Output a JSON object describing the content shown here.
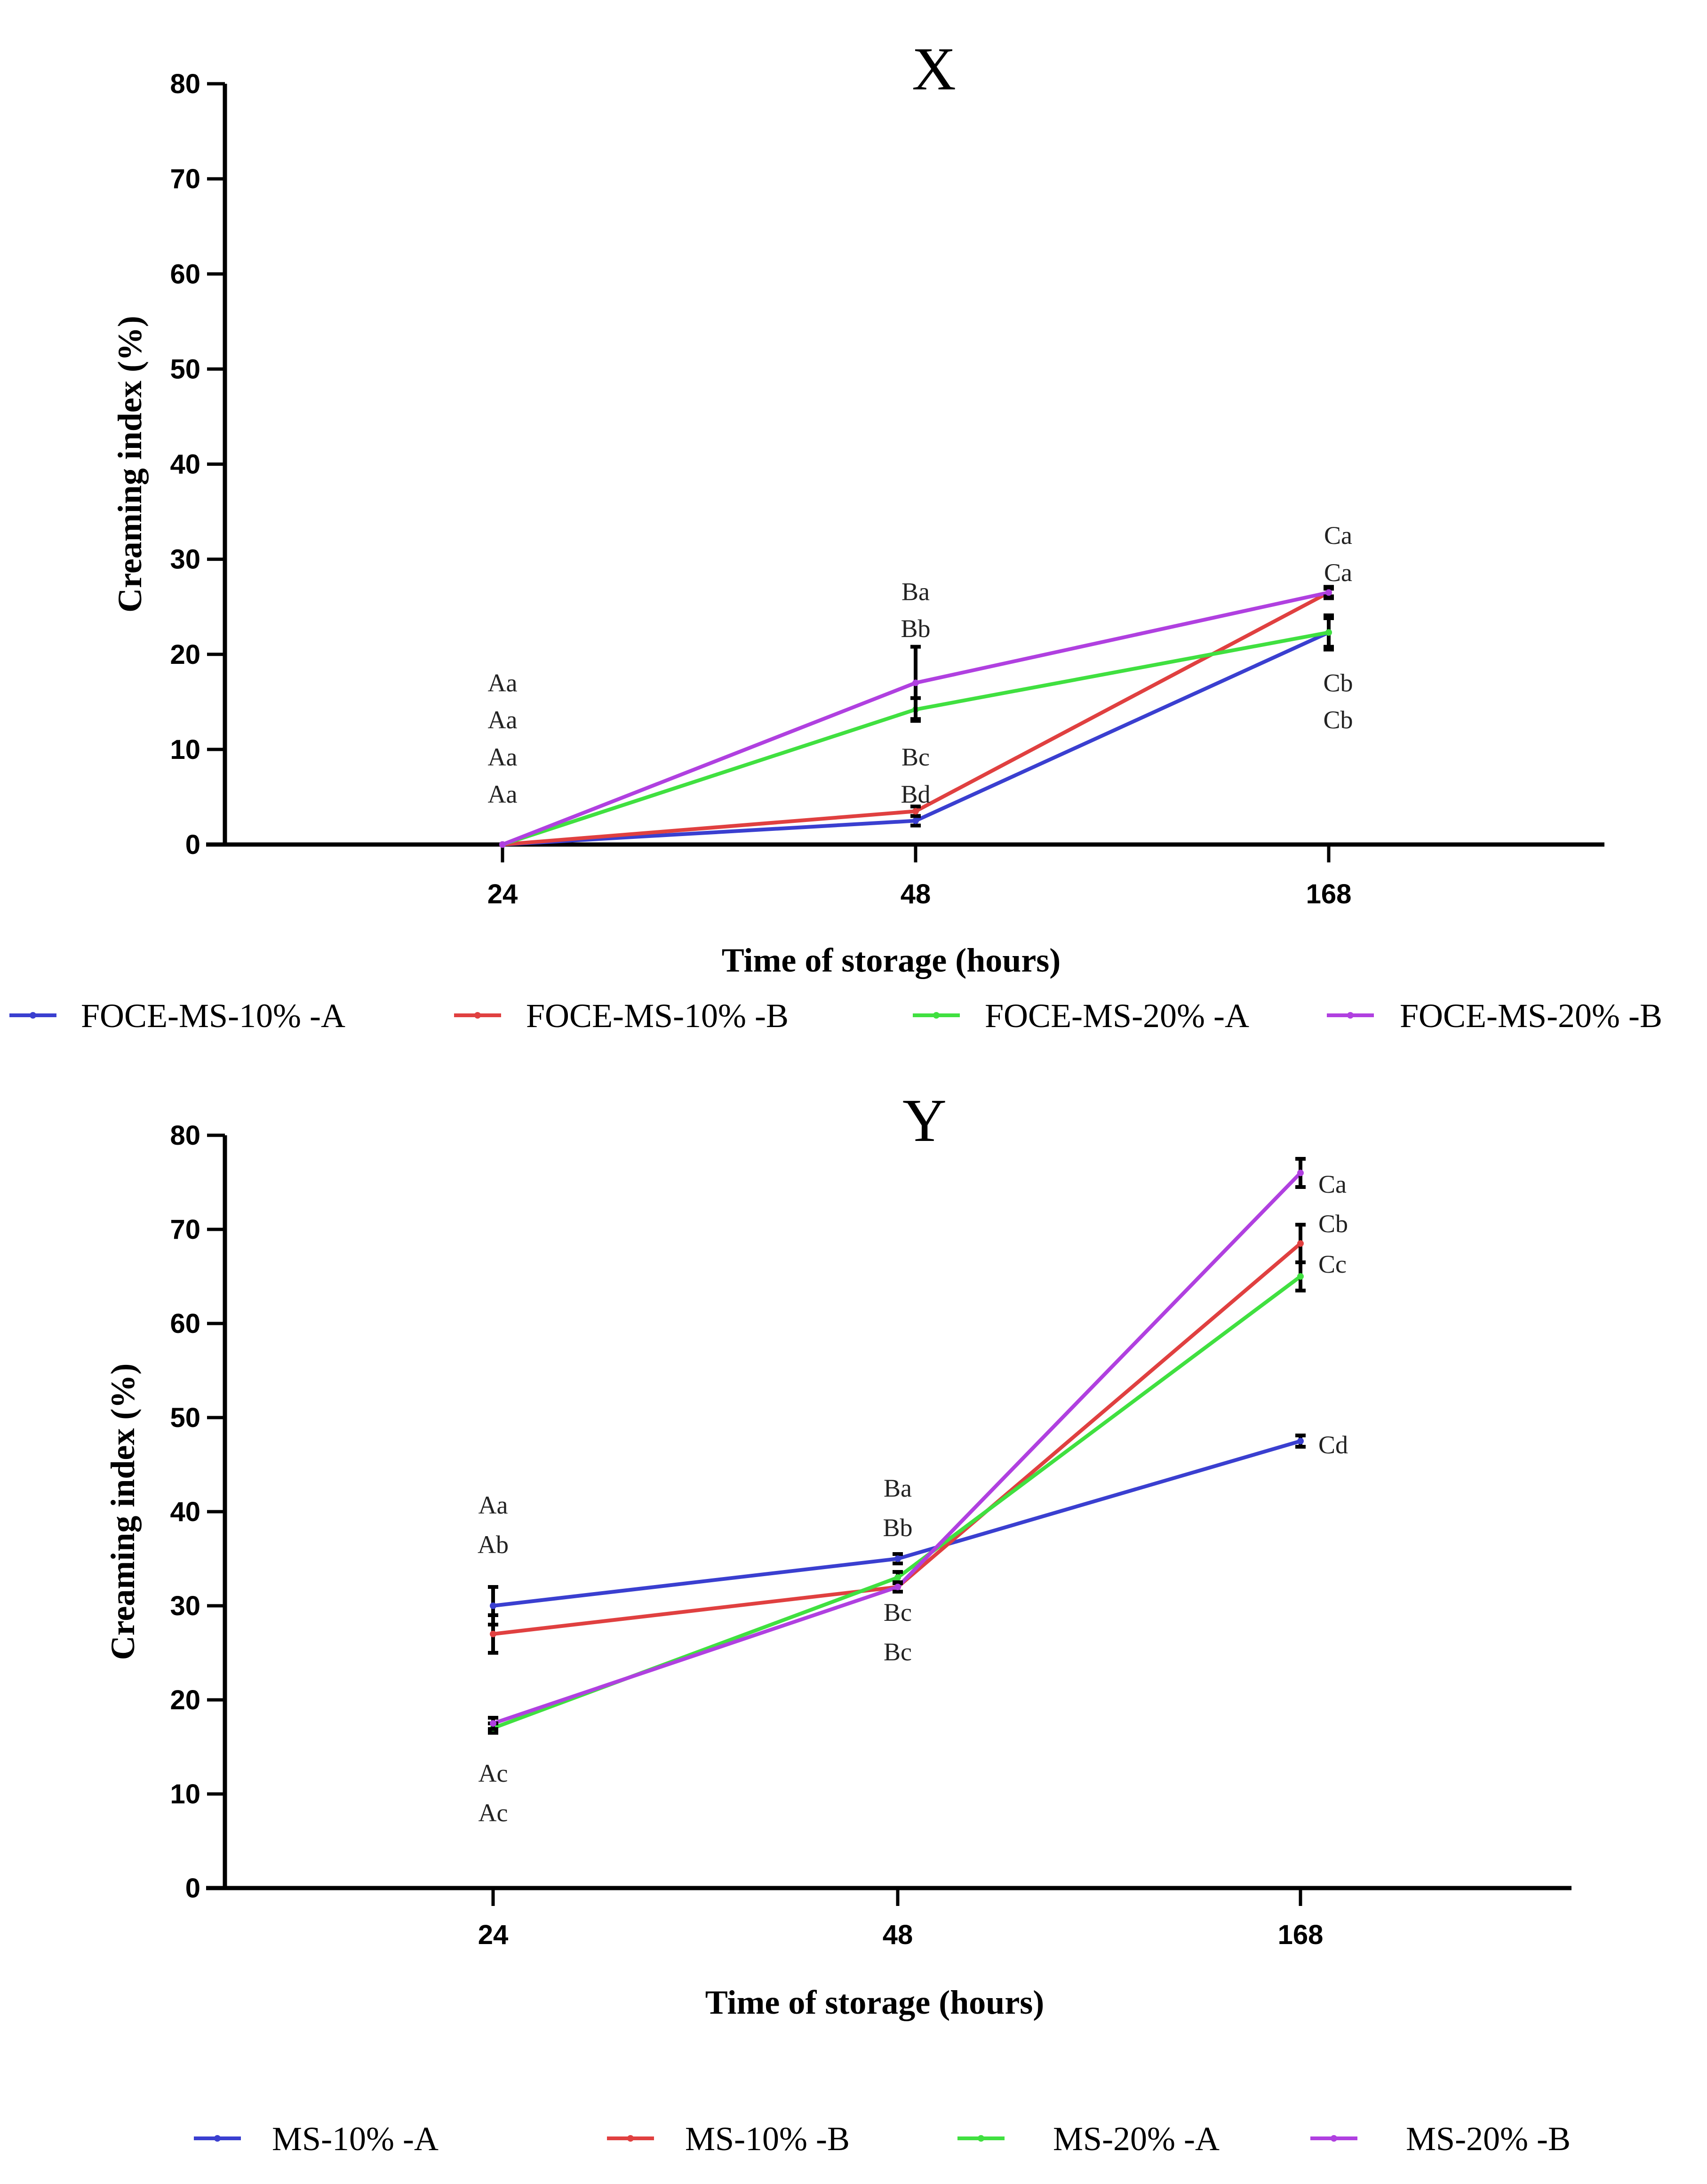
{
  "chart_data": [
    {
      "type": "line",
      "title": "X",
      "xlabel": "Time of storage (hours)",
      "ylabel": "Creaming index (%)",
      "ylim": [
        0,
        80
      ],
      "yticks": [
        "0",
        "10",
        "20",
        "30",
        "40",
        "50",
        "60",
        "70",
        "80"
      ],
      "categories": [
        "24",
        "48",
        "168"
      ],
      "grid": false,
      "legend_position": "bottom",
      "series": [
        {
          "name": "FOCE-MS-10% -A",
          "color": "#3a3fd0",
          "values": [
            0,
            2.5,
            22.3
          ],
          "errors": [
            0,
            0.5,
            1.5
          ]
        },
        {
          "name": "FOCE-MS-10% -B",
          "color": "#e04040",
          "values": [
            0,
            3.5,
            26.5
          ],
          "errors": [
            0,
            0.5,
            0.6
          ]
        },
        {
          "name": "FOCE-MS-20% -A",
          "color": "#40e040",
          "values": [
            0,
            14.2,
            22.3
          ],
          "errors": [
            0,
            1.2,
            1.8
          ]
        },
        {
          "name": "FOCE-MS-20% -B",
          "color": "#b040e0",
          "values": [
            0,
            17.0,
            26.5
          ],
          "errors": [
            0,
            3.8,
            0.4
          ]
        }
      ],
      "annotations": [
        {
          "category": "24",
          "y": 17.0,
          "text": "Aa"
        },
        {
          "category": "24",
          "y": 13.1,
          "text": "Aa"
        },
        {
          "category": "24",
          "y": 9.2,
          "text": "Aa"
        },
        {
          "category": "24",
          "y": 5.3,
          "text": "Aa"
        },
        {
          "category": "48",
          "y": 26.6,
          "text": "Ba"
        },
        {
          "category": "48",
          "y": 22.7,
          "text": "Bb"
        },
        {
          "category": "48",
          "y": 9.2,
          "text": "Bc"
        },
        {
          "category": "48",
          "y": 5.3,
          "text": "Bd"
        },
        {
          "category": "168",
          "y": 32.5,
          "text": "Ca"
        },
        {
          "category": "168",
          "y": 28.6,
          "text": "Ca"
        },
        {
          "category": "168",
          "y": 17.0,
          "text": "Cb"
        },
        {
          "category": "168",
          "y": 13.1,
          "text": "Cb"
        }
      ]
    },
    {
      "type": "line",
      "title": "Y",
      "xlabel": "Time of storage (hours)",
      "ylabel": "Creaming index (%)",
      "ylim": [
        0,
        80
      ],
      "yticks": [
        "0",
        "10",
        "20",
        "30",
        "40",
        "50",
        "60",
        "70",
        "80"
      ],
      "categories": [
        "24",
        "48",
        "168"
      ],
      "grid": false,
      "legend_position": "bottom",
      "series": [
        {
          "name": "MS-10% -A",
          "color": "#3a3fd0",
          "values": [
            30.0,
            35.0,
            47.5
          ],
          "errors": [
            2.0,
            0.5,
            0.6
          ]
        },
        {
          "name": "MS-10% -B",
          "color": "#e04040",
          "values": [
            27.0,
            32.0,
            68.5
          ],
          "errors": [
            2.0,
            0.5,
            2.0
          ]
        },
        {
          "name": "MS-20% -A",
          "color": "#40e040",
          "values": [
            17.0,
            33.0,
            65.0
          ],
          "errors": [
            0.5,
            0.6,
            1.5
          ]
        },
        {
          "name": "MS-20% -B",
          "color": "#b040e0",
          "values": [
            17.5,
            32.0,
            76.0
          ],
          "errors": [
            0.6,
            0.5,
            1.5
          ]
        }
      ],
      "annotations": [
        {
          "category": "24",
          "y": 40.7,
          "text": "Aa"
        },
        {
          "category": "24",
          "y": 36.5,
          "text": "Ab"
        },
        {
          "category": "24",
          "y": 12.2,
          "text": "Ac"
        },
        {
          "category": "24",
          "y": 8.0,
          "text": "Ac"
        },
        {
          "category": "48",
          "y": 42.5,
          "text": "Ba"
        },
        {
          "category": "48",
          "y": 38.3,
          "text": "Bb"
        },
        {
          "category": "48",
          "y": 29.3,
          "text": "Bc"
        },
        {
          "category": "48",
          "y": 25.1,
          "text": "Bc"
        },
        {
          "category": "168",
          "y": 74.8,
          "text": "Ca"
        },
        {
          "category": "168",
          "y": 70.6,
          "text": "Cb"
        },
        {
          "category": "168",
          "y": 66.3,
          "text": "Cc"
        },
        {
          "category": "168",
          "y": 47.1,
          "text": "Cd"
        }
      ]
    }
  ]
}
